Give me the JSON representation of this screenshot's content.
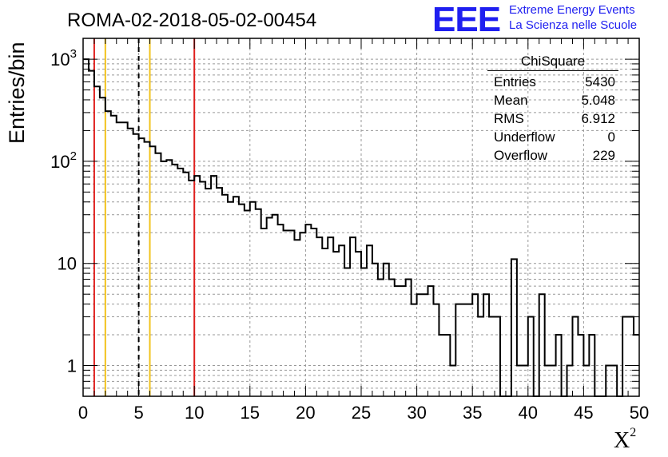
{
  "title": "ROMA-02-2018-05-02-00454",
  "logo": {
    "letters": "EEE",
    "line1": "Extreme Energy Events",
    "line2": "La Scienza nelle Scuole"
  },
  "stats": {
    "title": "ChiSquare",
    "rows": [
      {
        "label": "Entries",
        "value": "5430"
      },
      {
        "label": "Mean",
        "value": "5.048"
      },
      {
        "label": "RMS",
        "value": "6.912"
      },
      {
        "label": "Underflow",
        "value": "0"
      },
      {
        "label": "Overflow",
        "value": "229"
      }
    ]
  },
  "chart_data": {
    "type": "histogram",
    "title": "ROMA-02-2018-05-02-00454",
    "xlabel": "X²",
    "ylabel": "Entries/bin",
    "xlim": [
      0,
      50
    ],
    "ylim": [
      0.5,
      1600
    ],
    "yscale": "log",
    "grid": true,
    "bin_width": 0.5,
    "x_ticks": [
      "0",
      "5",
      "10",
      "15",
      "20",
      "25",
      "30",
      "35",
      "40",
      "45",
      "50"
    ],
    "y_ticks": [
      {
        "value": 1,
        "base": "1",
        "exp": ""
      },
      {
        "value": 10,
        "base": "10",
        "exp": ""
      },
      {
        "value": 100,
        "base": "10",
        "exp": "2"
      },
      {
        "value": 1000,
        "base": "10",
        "exp": "3"
      }
    ],
    "counts": [
      1000,
      770,
      540,
      420,
      310,
      280,
      240,
      240,
      210,
      185,
      168,
      155,
      140,
      120,
      100,
      103,
      93,
      85,
      78,
      65,
      72,
      63,
      54,
      72,
      55,
      47,
      40,
      45,
      38,
      33,
      40,
      34,
      22,
      28,
      30,
      24,
      21,
      21,
      17,
      20,
      24,
      22,
      18,
      14,
      18,
      13,
      15,
      9,
      18,
      13,
      9,
      15,
      10,
      7,
      10,
      7,
      6,
      6,
      7,
      4,
      5,
      5,
      6,
      4,
      2,
      2,
      1,
      4,
      4,
      4,
      5,
      3,
      5,
      3,
      3,
      0,
      0,
      11,
      1,
      1,
      3,
      0,
      5,
      1,
      1,
      2,
      0,
      1,
      3,
      2,
      1,
      2,
      0,
      0,
      1,
      1,
      0,
      3,
      3,
      2
    ],
    "vlines": [
      {
        "x": 1,
        "color": "#e0201e",
        "style": "solid"
      },
      {
        "x": 2,
        "color": "#f2c21c",
        "style": "solid"
      },
      {
        "x": 5,
        "color": "#000000",
        "style": "dashed"
      },
      {
        "x": 6,
        "color": "#f2c21c",
        "style": "solid"
      },
      {
        "x": 10,
        "color": "#e0201e",
        "style": "solid"
      }
    ]
  }
}
